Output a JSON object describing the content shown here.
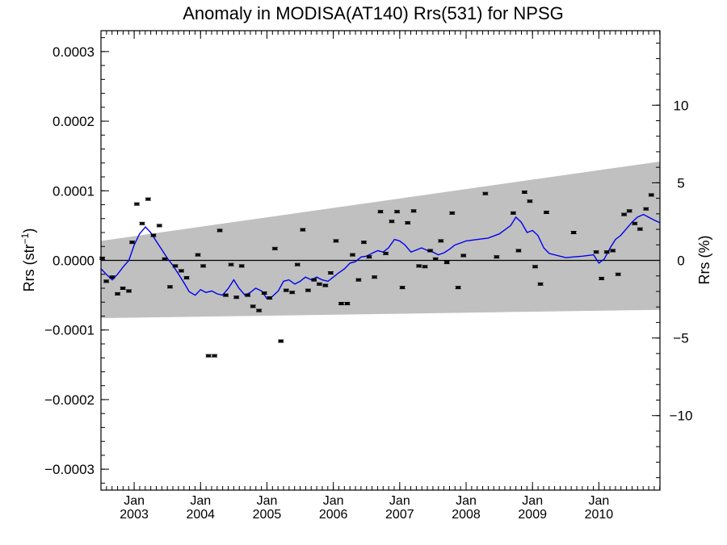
{
  "chart_data": {
    "type": "scatter",
    "title": "Anomaly in MODISA(AT140) Rrs(531) for NPSG",
    "ylabel_left": "Rrs (str",
    "ylabel_left_sup": "−1",
    "ylabel_left_close": ")",
    "ylabel_right": "Rrs (%)",
    "xlim": [
      2002.5,
      2010.92
    ],
    "ylim": [
      -0.00033,
      0.00033
    ],
    "right_ylim": [
      -14.8,
      14.8
    ],
    "grid": false,
    "left_ticks": [
      {
        "value": 0.0003,
        "label": "0.0003"
      },
      {
        "value": 0.0002,
        "label": "0.0002"
      },
      {
        "value": 0.0001,
        "label": "0.0001"
      },
      {
        "value": 0.0,
        "label": "0.0000"
      },
      {
        "value": -0.0001,
        "label": "−0.0001"
      },
      {
        "value": -0.0002,
        "label": "−0.0002"
      },
      {
        "value": -0.0003,
        "label": "−0.0003"
      }
    ],
    "right_ticks": [
      {
        "value": 10,
        "label": "10"
      },
      {
        "value": 5,
        "label": "5"
      },
      {
        "value": 0,
        "label": "0"
      },
      {
        "value": -5,
        "label": "−5"
      },
      {
        "value": -10,
        "label": "−10"
      }
    ],
    "x_ticks": [
      {
        "value": 2003.0,
        "month": "Jan",
        "year": "2003"
      },
      {
        "value": 2004.0,
        "month": "Jan",
        "year": "2004"
      },
      {
        "value": 2005.0,
        "month": "Jan",
        "year": "2005"
      },
      {
        "value": 2006.0,
        "month": "Jan",
        "year": "2006"
      },
      {
        "value": 2007.0,
        "month": "Jan",
        "year": "2007"
      },
      {
        "value": 2008.0,
        "month": "Jan",
        "year": "2008"
      },
      {
        "value": 2009.0,
        "month": "Jan",
        "year": "2009"
      },
      {
        "value": 2010.0,
        "month": "Jan",
        "year": "2010"
      }
    ],
    "band": {
      "x": [
        2002.5,
        2010.92
      ],
      "upper": [
        2.8e-05,
        0.000142
      ],
      "lower": [
        -8.3e-05,
        -7.1e-05
      ]
    },
    "zero_line": 0,
    "points": [
      {
        "x": 2002.52,
        "y": 3e-06
      },
      {
        "x": 2002.58,
        "y": -3e-05
      },
      {
        "x": 2002.67,
        "y": -2.4e-05
      },
      {
        "x": 2002.75,
        "y": -4.8e-05
      },
      {
        "x": 2002.83,
        "y": -4e-05
      },
      {
        "x": 2002.92,
        "y": -4.4e-05
      },
      {
        "x": 2002.97,
        "y": 2.6e-05
      },
      {
        "x": 2003.04,
        "y": 8.1e-05
      },
      {
        "x": 2003.12,
        "y": 5.3e-05
      },
      {
        "x": 2003.21,
        "y": 8.8e-05
      },
      {
        "x": 2003.29,
        "y": 3.6e-05
      },
      {
        "x": 2003.38,
        "y": 5e-05
      },
      {
        "x": 2003.46,
        "y": 2e-06
      },
      {
        "x": 2003.54,
        "y": -3.8e-05
      },
      {
        "x": 2003.62,
        "y": -8e-06
      },
      {
        "x": 2003.71,
        "y": -1.5e-05
      },
      {
        "x": 2003.79,
        "y": -2.5e-05
      },
      {
        "x": 2003.96,
        "y": 8e-06
      },
      {
        "x": 2004.04,
        "y": -8e-06
      },
      {
        "x": 2004.12,
        "y": -0.000137
      },
      {
        "x": 2004.21,
        "y": -0.000137
      },
      {
        "x": 2004.29,
        "y": 4.3e-05
      },
      {
        "x": 2004.38,
        "y": -5e-05
      },
      {
        "x": 2004.46,
        "y": -6e-06
      },
      {
        "x": 2004.54,
        "y": -5.3e-05
      },
      {
        "x": 2004.62,
        "y": -8e-06
      },
      {
        "x": 2004.71,
        "y": -5e-05
      },
      {
        "x": 2004.79,
        "y": -6.6e-05
      },
      {
        "x": 2004.88,
        "y": -7.2e-05
      },
      {
        "x": 2004.96,
        "y": -4.7e-05
      },
      {
        "x": 2005.04,
        "y": -5.4e-05
      },
      {
        "x": 2005.12,
        "y": 1.7e-05
      },
      {
        "x": 2005.21,
        "y": -0.000116
      },
      {
        "x": 2005.29,
        "y": -4.3e-05
      },
      {
        "x": 2005.38,
        "y": -4.6e-05
      },
      {
        "x": 2005.46,
        "y": -6e-06
      },
      {
        "x": 2005.54,
        "y": 4.4e-05
      },
      {
        "x": 2005.62,
        "y": -4.3e-05
      },
      {
        "x": 2005.71,
        "y": -2.8e-05
      },
      {
        "x": 2005.79,
        "y": -3.4e-05
      },
      {
        "x": 2005.88,
        "y": -3.6e-05
      },
      {
        "x": 2005.96,
        "y": -1.8e-05
      },
      {
        "x": 2006.04,
        "y": 2.8e-05
      },
      {
        "x": 2006.12,
        "y": -6.2e-05
      },
      {
        "x": 2006.21,
        "y": -6.2e-05
      },
      {
        "x": 2006.29,
        "y": 8e-06
      },
      {
        "x": 2006.38,
        "y": -2.8e-05
      },
      {
        "x": 2006.46,
        "y": 2.6e-05
      },
      {
        "x": 2006.54,
        "y": 5e-06
      },
      {
        "x": 2006.62,
        "y": -2.4e-05
      },
      {
        "x": 2006.71,
        "y": 7e-05
      },
      {
        "x": 2006.79,
        "y": 1e-05
      },
      {
        "x": 2006.88,
        "y": 5.6e-05
      },
      {
        "x": 2006.96,
        "y": 7e-05
      },
      {
        "x": 2007.04,
        "y": -3.9e-05
      },
      {
        "x": 2007.12,
        "y": 5.4e-05
      },
      {
        "x": 2007.21,
        "y": 7.1e-05
      },
      {
        "x": 2007.29,
        "y": -8e-06
      },
      {
        "x": 2007.38,
        "y": -9e-06
      },
      {
        "x": 2007.46,
        "y": 1.4e-05
      },
      {
        "x": 2007.54,
        "y": 2e-06
      },
      {
        "x": 2007.62,
        "y": 2.8e-05
      },
      {
        "x": 2007.71,
        "y": -3e-06
      },
      {
        "x": 2007.79,
        "y": 6.8e-05
      },
      {
        "x": 2007.88,
        "y": -3.9e-05
      },
      {
        "x": 2007.96,
        "y": 7e-06
      },
      {
        "x": 2008.29,
        "y": 9.6e-05
      },
      {
        "x": 2008.46,
        "y": 5e-06
      },
      {
        "x": 2008.71,
        "y": 6.8e-05
      },
      {
        "x": 2008.79,
        "y": 1.4e-05
      },
      {
        "x": 2008.88,
        "y": 9.8e-05
      },
      {
        "x": 2008.96,
        "y": 8.5e-05
      },
      {
        "x": 2009.04,
        "y": -9e-06
      },
      {
        "x": 2009.12,
        "y": -3.4e-05
      },
      {
        "x": 2009.21,
        "y": 6.9e-05
      },
      {
        "x": 2009.62,
        "y": 4e-05
      },
      {
        "x": 2009.96,
        "y": 1.2e-05
      },
      {
        "x": 2010.04,
        "y": -2.6e-05
      },
      {
        "x": 2010.12,
        "y": 1.2e-05
      },
      {
        "x": 2010.21,
        "y": 1.4e-05
      },
      {
        "x": 2010.29,
        "y": -2e-05
      },
      {
        "x": 2010.38,
        "y": 6.6e-05
      },
      {
        "x": 2010.46,
        "y": 7.1e-05
      },
      {
        "x": 2010.54,
        "y": 5.3e-05
      },
      {
        "x": 2010.62,
        "y": 4.5e-05
      },
      {
        "x": 2010.71,
        "y": 7.4e-05
      },
      {
        "x": 2010.79,
        "y": 9.4e-05
      }
    ],
    "smooth_line": {
      "x": [
        2002.5,
        2002.58,
        2002.67,
        2002.75,
        2002.83,
        2002.92,
        2003.0,
        2003.08,
        2003.17,
        2003.25,
        2003.33,
        2003.42,
        2003.5,
        2003.58,
        2003.67,
        2003.75,
        2003.83,
        2003.92,
        2004.0,
        2004.08,
        2004.17,
        2004.25,
        2004.33,
        2004.42,
        2004.5,
        2004.58,
        2004.67,
        2004.75,
        2004.83,
        2004.92,
        2005.0,
        2005.08,
        2005.17,
        2005.25,
        2005.33,
        2005.42,
        2005.5,
        2005.58,
        2005.67,
        2005.75,
        2005.83,
        2005.92,
        2006.0,
        2006.08,
        2006.17,
        2006.25,
        2006.33,
        2006.42,
        2006.5,
        2006.58,
        2006.67,
        2006.75,
        2006.83,
        2006.92,
        2007.0,
        2007.08,
        2007.17,
        2007.25,
        2007.33,
        2007.42,
        2007.5,
        2007.58,
        2007.67,
        2007.75,
        2007.83,
        2007.92,
        2008.0,
        2008.17,
        2008.33,
        2008.5,
        2008.67,
        2008.75,
        2008.83,
        2008.92,
        2009.0,
        2009.08,
        2009.17,
        2009.25,
        2009.5,
        2009.75,
        2009.92,
        2010.0,
        2010.08,
        2010.17,
        2010.25,
        2010.33,
        2010.42,
        2010.5,
        2010.58,
        2010.67,
        2010.75,
        2010.83,
        2010.92
      ],
      "y": [
        -1.2e-05,
        -2e-05,
        -2.8e-05,
        -2e-05,
        -1e-05,
        0.0,
        2.2e-05,
        3.8e-05,
        4.8e-05,
        4e-05,
        2.8e-05,
        1.5e-05,
        3e-06,
        -7e-06,
        -2e-05,
        -3.2e-05,
        -4.5e-05,
        -5e-05,
        -4.2e-05,
        -4.6e-05,
        -4.4e-05,
        -4.8e-05,
        -5e-05,
        -4e-05,
        -2.8e-05,
        -4e-05,
        -5e-05,
        -4.6e-05,
        -4e-05,
        -4.4e-05,
        -5.5e-05,
        -5.2e-05,
        -4.4e-05,
        -3e-05,
        -2.8e-05,
        -3.4e-05,
        -3e-05,
        -2.4e-05,
        -2.8e-05,
        -2.4e-05,
        -2.8e-05,
        -3e-05,
        -2.4e-05,
        -1.8e-05,
        -1.2e-05,
        -4e-06,
        -2e-06,
        5e-06,
        6e-06,
        1e-05,
        1.4e-05,
        1.2e-05,
        1.8e-05,
        3e-05,
        2.8e-05,
        2.2e-05,
        1.2e-05,
        1.5e-05,
        1.8e-05,
        1.4e-05,
        1.2e-05,
        8e-06,
        1.1e-05,
        1.6e-05,
        2.2e-05,
        2.5e-05,
        2.8e-05,
        3e-05,
        3.2e-05,
        3.8e-05,
        5e-05,
        6.2e-05,
        5.5e-05,
        4e-05,
        4.3e-05,
        3.6e-05,
        1.8e-05,
        1e-05,
        4e-06,
        6e-06,
        8e-06,
        -4e-06,
        2e-06,
        1.8e-05,
        3e-05,
        3.6e-05,
        4.6e-05,
        5.5e-05,
        6.2e-05,
        6.6e-05,
        6.2e-05,
        5.8e-05,
        5.4e-05
      ]
    },
    "colors": {
      "band": "#c0c0c0",
      "line": "#0000ee",
      "points": "#000000",
      "axis": "#000000"
    }
  }
}
